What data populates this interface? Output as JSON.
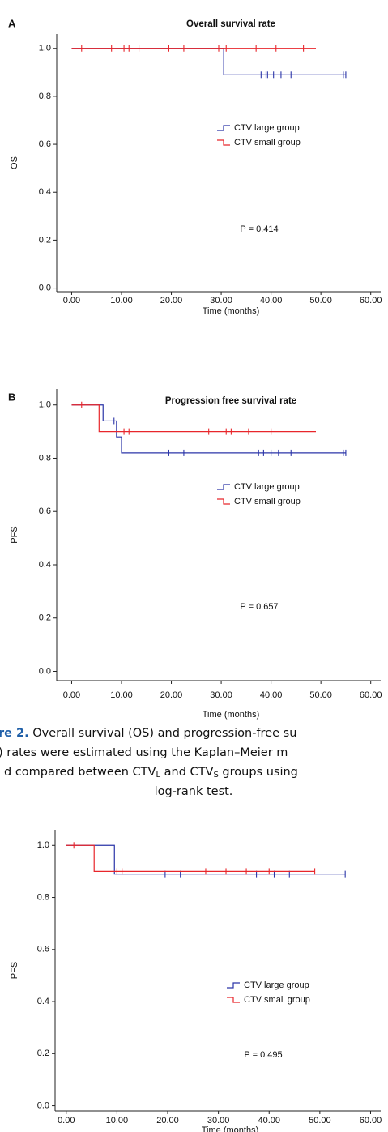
{
  "chart_data": [
    {
      "type": "step",
      "panel_label": "A",
      "title": "Overall survival rate",
      "y_label": "OS",
      "x_label": "Time (months)",
      "annotation": "P = 0.414",
      "xlim": [
        -3,
        62
      ],
      "ylim": [
        -0.015,
        1.06
      ],
      "xticks": [
        {
          "value": 0,
          "label": "0.00"
        },
        {
          "value": 10,
          "label": "10.00"
        },
        {
          "value": 20,
          "label": "20.00"
        },
        {
          "value": 30,
          "label": "30.00"
        },
        {
          "value": 40,
          "label": "40.00"
        },
        {
          "value": 50,
          "label": "50.00"
        },
        {
          "value": 60,
          "label": "60.00"
        }
      ],
      "yticks": [
        {
          "value": 0,
          "label": "0.0"
        },
        0.2,
        0.4,
        0.6,
        0.8,
        {
          "value": 1,
          "label": "1.0"
        }
      ],
      "series": [
        {
          "name": "CTV large group",
          "color": "#2b35a8",
          "x": [
            0,
            30.5,
            55
          ],
          "values": [
            1,
            0.89,
            0.89
          ],
          "censor_x": [
            38,
            39,
            39.3,
            40.5,
            42,
            44,
            54.5,
            55
          ],
          "censor_values": [
            0.89,
            0.89,
            0.89,
            0.89,
            0.89,
            0.89,
            0.89,
            0.89
          ]
        },
        {
          "name": "CTV small group",
          "color": "#e8262b",
          "x": [
            0,
            49
          ],
          "values": [
            1,
            1
          ],
          "censor_x": [
            2,
            8,
            10.5,
            11.5,
            13.5,
            19.5,
            22.5,
            29.5,
            31,
            37,
            41,
            46.5
          ],
          "censor_values": [
            1,
            1,
            1,
            1,
            1,
            1,
            1,
            1,
            1,
            1,
            1,
            1
          ]
        }
      ]
    },
    {
      "type": "step",
      "panel_label": "B",
      "title": "Progression free survival rate",
      "y_label": "PFS",
      "x_label": "Time (months)",
      "annotation": "P = 0.657",
      "xlim": [
        -3,
        62
      ],
      "ylim": [
        -0.035,
        1.06
      ],
      "xticks": [
        {
          "value": 0,
          "label": "0.00"
        },
        {
          "value": 10,
          "label": "10.00"
        },
        {
          "value": 20,
          "label": "20.00"
        },
        {
          "value": 30,
          "label": "30.00"
        },
        {
          "value": 40,
          "label": "40.00"
        },
        {
          "value": 50,
          "label": "50.00"
        },
        {
          "value": 60,
          "label": "60.00"
        }
      ],
      "yticks": [
        {
          "value": 0,
          "label": "0.0"
        },
        0.2,
        0.4,
        0.6,
        0.8,
        {
          "value": 1,
          "label": "1.0"
        }
      ],
      "series": [
        {
          "name": "CTV large group",
          "color": "#2b35a8",
          "x": [
            0,
            6.3,
            9,
            10,
            55
          ],
          "values": [
            1,
            0.94,
            0.88,
            0.82,
            0.82
          ],
          "censor_x": [
            8.5,
            19.5,
            22.5,
            37.5,
            38.5,
            40,
            41.5,
            44,
            54.5,
            55
          ],
          "censor_values": [
            0.94,
            0.82,
            0.82,
            0.82,
            0.82,
            0.82,
            0.82,
            0.82,
            0.82,
            0.82
          ]
        },
        {
          "name": "CTV small group",
          "color": "#e8262b",
          "x": [
            0,
            5.5,
            49
          ],
          "values": [
            1,
            0.9,
            0.9
          ],
          "censor_x": [
            2,
            10.5,
            11.5,
            27.5,
            31,
            32,
            35.5,
            40
          ],
          "censor_values": [
            1,
            0.9,
            0.9,
            0.9,
            0.9,
            0.9,
            0.9,
            0.9
          ]
        }
      ]
    },
    {
      "type": "step",
      "y_label": "PFS",
      "x_label": "Time (months)",
      "annotation": "P = 0.495",
      "xlim": [
        -2.2,
        62
      ],
      "ylim": [
        -0.02,
        1.06
      ],
      "xticks": [
        {
          "value": 0,
          "label": "0.00"
        },
        {
          "value": 10,
          "label": "10.00"
        },
        {
          "value": 20,
          "label": "20.00"
        },
        {
          "value": 30,
          "label": "30.00"
        },
        {
          "value": 40,
          "label": "40.00"
        },
        {
          "value": 50,
          "label": "50.00"
        },
        {
          "value": 60,
          "label": "60.00"
        }
      ],
      "yticks": [
        {
          "value": 0,
          "label": "0.0"
        },
        0.2,
        0.4,
        0.6,
        0.8,
        {
          "value": 1,
          "label": "1.0"
        }
      ],
      "series": [
        {
          "name": "CTV large group",
          "color": "#2b35a8",
          "x": [
            0,
            9.5,
            55
          ],
          "values": [
            1,
            0.89,
            0.89
          ],
          "censor_x": [
            19.5,
            22.5,
            37.5,
            41,
            44,
            55
          ],
          "censor_values": [
            0.89,
            0.89,
            0.89,
            0.89,
            0.89,
            0.89
          ]
        },
        {
          "name": "CTV small group",
          "color": "#e8262b",
          "x": [
            0,
            5.5,
            49
          ],
          "values": [
            1,
            0.9,
            0.9
          ],
          "censor_x": [
            1.5,
            10,
            11,
            27.5,
            31.5,
            35.5,
            40,
            49
          ],
          "censor_values": [
            1,
            0.9,
            0.9,
            0.9,
            0.9,
            0.9,
            0.9,
            0.9
          ]
        }
      ]
    }
  ],
  "caption": {
    "label": "re 2.",
    "line1": " Overall survival (OS) and progression-free su",
    "line2": ") rates were estimated using the Kaplan–Meier m",
    "line3": [
      "d compared between CTV",
      "L",
      " and CTV",
      "S",
      " groups using"
    ],
    "line4": "log-rank test."
  }
}
